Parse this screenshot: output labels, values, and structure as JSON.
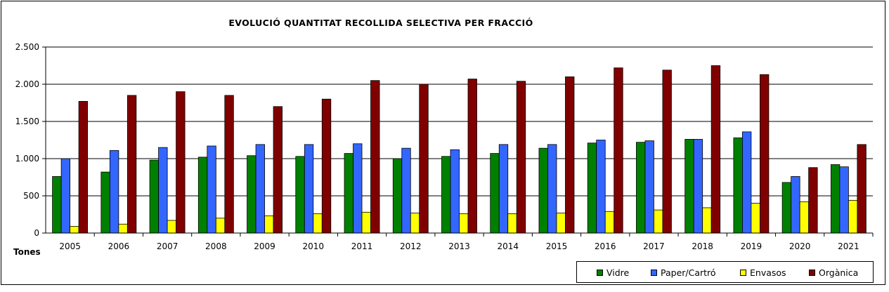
{
  "chart_data": {
    "type": "bar",
    "title": "EVOLUCIÓ  QUANTITAT  RECOLLIDA  SELECTIVA  PER  FRACCIÓ",
    "ylabel": "Tones",
    "xlabel": "",
    "ylim": [
      0,
      2500
    ],
    "yticks": [
      0,
      500,
      1000,
      1500,
      2000,
      2500
    ],
    "ytick_labels": [
      "0",
      "500",
      "1.000",
      "1.500",
      "2.000",
      "2.500"
    ],
    "grid": true,
    "legend_position": "bottom-right",
    "categories": [
      "2005",
      "2006",
      "2007",
      "2008",
      "2009",
      "2010",
      "2011",
      "2012",
      "2013",
      "2014",
      "2015",
      "2016",
      "2017",
      "2018",
      "2019",
      "2020",
      "2021"
    ],
    "series": [
      {
        "name": "Vidre",
        "color": "#008000",
        "values": [
          760,
          820,
          980,
          1020,
          1040,
          1030,
          1070,
          1000,
          1030,
          1070,
          1140,
          1210,
          1220,
          1260,
          1280,
          680,
          920
        ]
      },
      {
        "name": "Paper/Cartró",
        "color": "#3366FF",
        "values": [
          1000,
          1110,
          1150,
          1170,
          1190,
          1190,
          1200,
          1140,
          1120,
          1190,
          1190,
          1250,
          1240,
          1260,
          1360,
          760,
          890
        ]
      },
      {
        "name": "Envasos",
        "color": "#FFFF00",
        "values": [
          90,
          120,
          170,
          200,
          230,
          260,
          280,
          270,
          260,
          260,
          270,
          290,
          310,
          340,
          400,
          420,
          440
        ]
      },
      {
        "name": "Orgànica",
        "color": "#800000",
        "values": [
          1770,
          1850,
          1900,
          1850,
          1700,
          1800,
          2050,
          2000,
          2070,
          2040,
          2100,
          2220,
          2190,
          2250,
          2130,
          880,
          1190
        ]
      }
    ]
  }
}
